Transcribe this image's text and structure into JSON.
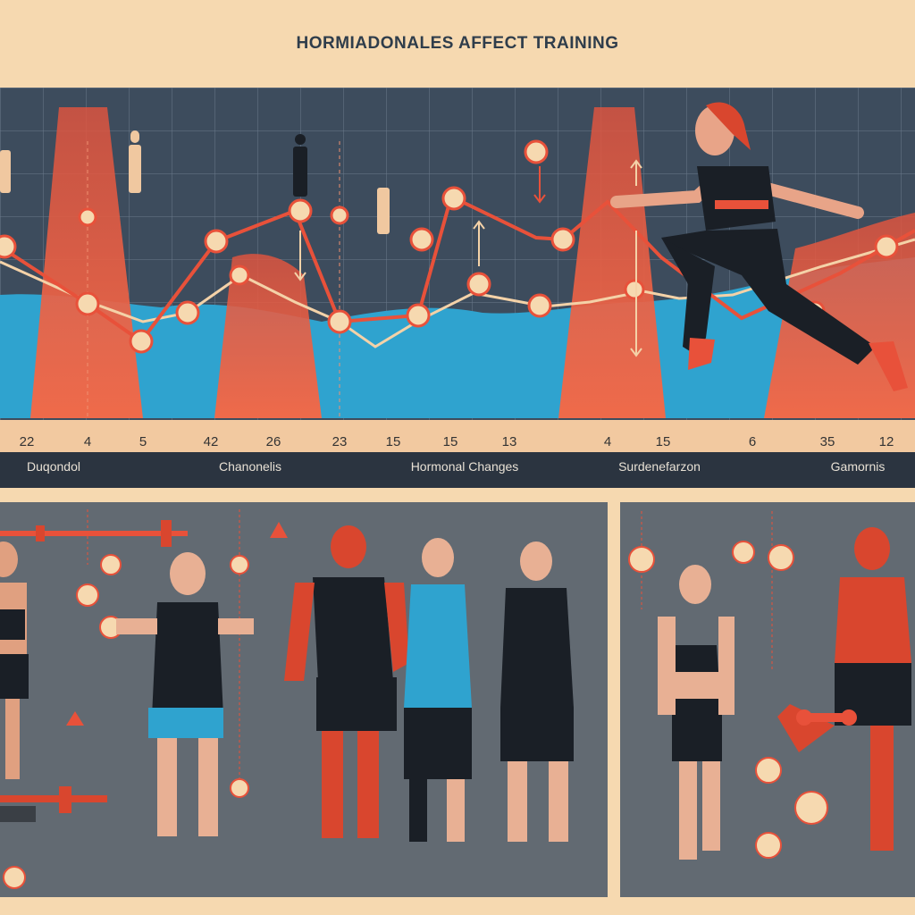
{
  "title": "HORMIADONALES AFFECT TRAINING",
  "axis_ticks": [
    "22",
    "4",
    "5",
    "42",
    "26",
    "23",
    "15",
    "15",
    "13",
    "4",
    "15",
    "6",
    "35",
    "12"
  ],
  "section_labels": [
    "Duqondol",
    "Chanonelis",
    "Hormonal Changes",
    "Surdenefarzon",
    "Gamornis"
  ],
  "colors": {
    "background": "#f6d9b0",
    "chart_bg": "#3d4c5d",
    "accent_red": "#e8513a",
    "accent_blue": "#2fa3cf",
    "panel_gray": "#626a72"
  },
  "icons": [
    "person-figure-icon",
    "arrow-up-icon",
    "arrow-down-icon",
    "barbell-icon",
    "dumbbell-icon"
  ]
}
